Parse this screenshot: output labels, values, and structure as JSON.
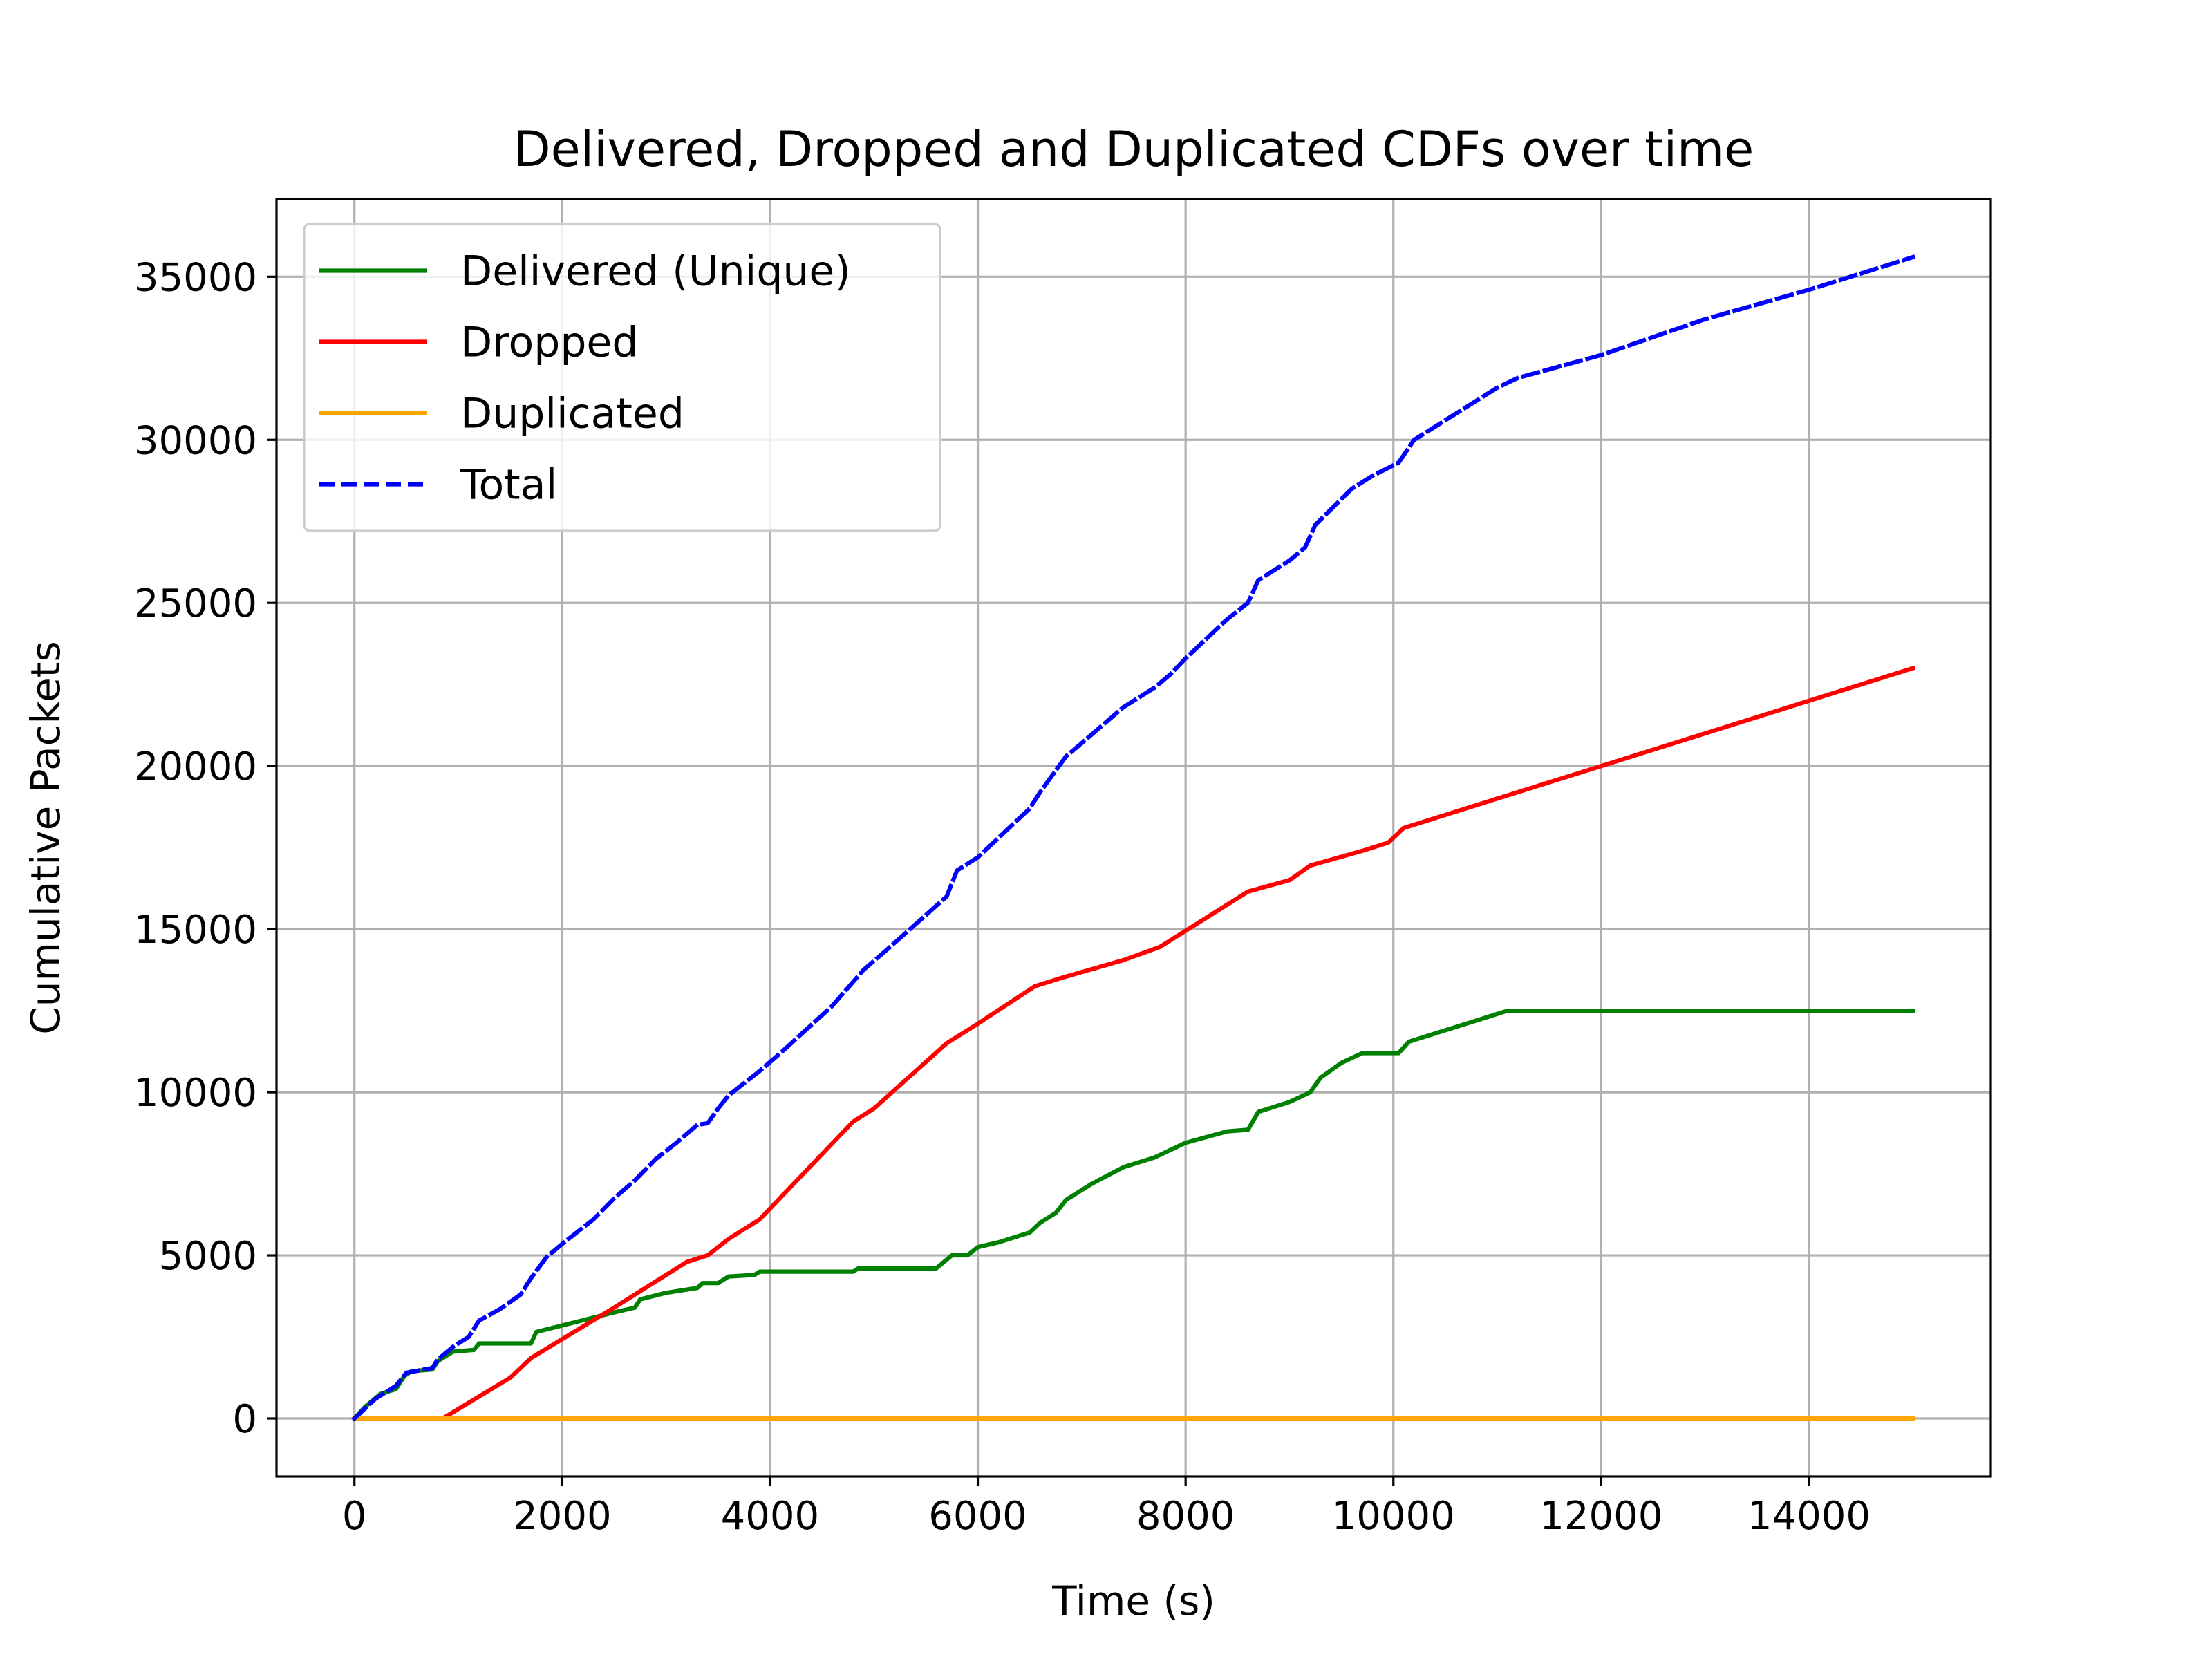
{
  "chart_data": {
    "type": "line",
    "title": "Delivered, Dropped and Duplicated CDFs over time",
    "xlabel": "Time (s)",
    "ylabel": "Cumulative Packets",
    "xlim": [
      -750,
      15750
    ],
    "ylim": [
      -1780,
      37380
    ],
    "x_ticks": [
      0,
      2000,
      4000,
      6000,
      8000,
      10000,
      12000,
      14000
    ],
    "x_tick_labels": [
      "0",
      "2000",
      "4000",
      "6000",
      "8000",
      "10000",
      "12000",
      "14000"
    ],
    "y_ticks": [
      0,
      5000,
      10000,
      15000,
      20000,
      25000,
      30000,
      35000
    ],
    "y_tick_labels": [
      "0",
      "5000",
      "10000",
      "15000",
      "20000",
      "25000",
      "30000",
      "35000"
    ],
    "grid": true,
    "legend_position": "upper-left",
    "series": [
      {
        "name": "Delivered (Unique)",
        "color": "#008000",
        "style": "solid",
        "points": [
          [
            0,
            0
          ],
          [
            100,
            350
          ],
          [
            250,
            750
          ],
          [
            400,
            900
          ],
          [
            480,
            1300
          ],
          [
            550,
            1450
          ],
          [
            750,
            1500
          ],
          [
            800,
            1750
          ],
          [
            950,
            2050
          ],
          [
            1150,
            2100
          ],
          [
            1200,
            2300
          ],
          [
            1700,
            2300
          ],
          [
            1750,
            2650
          ],
          [
            2000,
            2850
          ],
          [
            2500,
            3250
          ],
          [
            2700,
            3400
          ],
          [
            2750,
            3650
          ],
          [
            3000,
            3850
          ],
          [
            3300,
            4000
          ],
          [
            3350,
            4150
          ],
          [
            3500,
            4150
          ],
          [
            3600,
            4350
          ],
          [
            3850,
            4400
          ],
          [
            3900,
            4500
          ],
          [
            4800,
            4500
          ],
          [
            4850,
            4600
          ],
          [
            5600,
            4600
          ],
          [
            5750,
            5000
          ],
          [
            5900,
            5000
          ],
          [
            6000,
            5250
          ],
          [
            6200,
            5400
          ],
          [
            6500,
            5700
          ],
          [
            6600,
            6000
          ],
          [
            6750,
            6300
          ],
          [
            6850,
            6700
          ],
          [
            7100,
            7200
          ],
          [
            7400,
            7700
          ],
          [
            7700,
            8000
          ],
          [
            7800,
            8150
          ],
          [
            8000,
            8450
          ],
          [
            8400,
            8800
          ],
          [
            8600,
            8850
          ],
          [
            8700,
            9400
          ],
          [
            9000,
            9700
          ],
          [
            9200,
            10000
          ],
          [
            9300,
            10450
          ],
          [
            9500,
            10900
          ],
          [
            9700,
            11200
          ],
          [
            10050,
            11200
          ],
          [
            10150,
            11550
          ],
          [
            11100,
            12500
          ],
          [
            15000,
            12500
          ]
        ]
      },
      {
        "name": "Dropped",
        "color": "#ff0000",
        "style": "solid",
        "points": [
          [
            850,
            0
          ],
          [
            1500,
            1250
          ],
          [
            1700,
            1850
          ],
          [
            2500,
            3400
          ],
          [
            3200,
            4800
          ],
          [
            3400,
            5000
          ],
          [
            3600,
            5500
          ],
          [
            3900,
            6100
          ],
          [
            4200,
            7100
          ],
          [
            4800,
            9100
          ],
          [
            5000,
            9500
          ],
          [
            5700,
            11500
          ],
          [
            6000,
            12100
          ],
          [
            6550,
            13250
          ],
          [
            6800,
            13500
          ],
          [
            7400,
            14050
          ],
          [
            7750,
            14450
          ],
          [
            8000,
            14950
          ],
          [
            8600,
            16150
          ],
          [
            9000,
            16500
          ],
          [
            9200,
            16950
          ],
          [
            9700,
            17400
          ],
          [
            9950,
            17650
          ],
          [
            10100,
            18100
          ],
          [
            15000,
            23000
          ]
        ]
      },
      {
        "name": "Duplicated",
        "color": "#ffa500",
        "style": "solid",
        "points": [
          [
            0,
            0
          ],
          [
            15000,
            0
          ]
        ]
      },
      {
        "name": "Total",
        "color": "#0000ff",
        "style": "dashed",
        "points": [
          [
            0,
            0
          ],
          [
            200,
            600
          ],
          [
            400,
            1000
          ],
          [
            500,
            1400
          ],
          [
            750,
            1550
          ],
          [
            800,
            1800
          ],
          [
            950,
            2200
          ],
          [
            1100,
            2500
          ],
          [
            1200,
            3000
          ],
          [
            1400,
            3350
          ],
          [
            1600,
            3800
          ],
          [
            1700,
            4300
          ],
          [
            1850,
            4950
          ],
          [
            2000,
            5350
          ],
          [
            2300,
            6100
          ],
          [
            2500,
            6750
          ],
          [
            2700,
            7300
          ],
          [
            2900,
            7950
          ],
          [
            3100,
            8450
          ],
          [
            3300,
            9000
          ],
          [
            3400,
            9050
          ],
          [
            3500,
            9500
          ],
          [
            3600,
            9900
          ],
          [
            3900,
            10650
          ],
          [
            4100,
            11200
          ],
          [
            4600,
            12650
          ],
          [
            4900,
            13750
          ],
          [
            5100,
            14300
          ],
          [
            5400,
            15150
          ],
          [
            5700,
            16000
          ],
          [
            5800,
            16800
          ],
          [
            6000,
            17200
          ],
          [
            6500,
            18700
          ],
          [
            6600,
            19200
          ],
          [
            6850,
            20300
          ],
          [
            7000,
            20700
          ],
          [
            7400,
            21800
          ],
          [
            7700,
            22400
          ],
          [
            7850,
            22800
          ],
          [
            8000,
            23300
          ],
          [
            8200,
            23900
          ],
          [
            8400,
            24500
          ],
          [
            8600,
            25000
          ],
          [
            8700,
            25700
          ],
          [
            9000,
            26300
          ],
          [
            9150,
            26700
          ],
          [
            9250,
            27400
          ],
          [
            9600,
            28500
          ],
          [
            9800,
            28900
          ],
          [
            10050,
            29300
          ],
          [
            10200,
            30000
          ],
          [
            10600,
            30800
          ],
          [
            11000,
            31600
          ],
          [
            11200,
            31900
          ],
          [
            12000,
            32600
          ],
          [
            13000,
            33700
          ],
          [
            14000,
            34600
          ],
          [
            15000,
            35600
          ]
        ]
      }
    ]
  }
}
